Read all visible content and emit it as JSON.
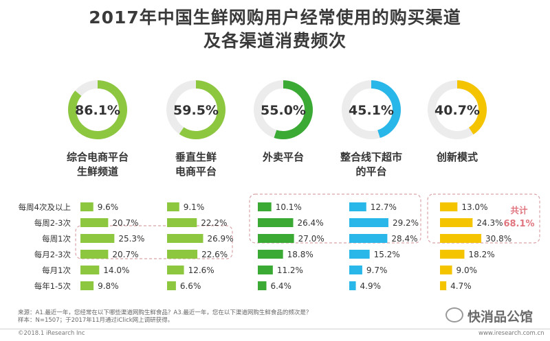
{
  "header": {
    "title_line1": "2017年中国生鲜网购用户经常使用的购买渠道",
    "title_line2": "及各渠道消费频次"
  },
  "chart_data": {
    "type": "bar",
    "title": "2017年中国生鲜网购用户经常使用的购买渠道及各渠道消费频次",
    "channels": [
      {
        "name": "综合电商平台\n生鲜频道",
        "usage": 86.1,
        "usage_label": "86.1%",
        "color": "#8dc63f",
        "freq": [
          9.6,
          20.7,
          25.3,
          20.7,
          14.0,
          9.8
        ]
      },
      {
        "name": "垂直生鲜\n电商平台",
        "usage": 59.5,
        "usage_label": "59.5%",
        "color": "#8dc63f",
        "freq": [
          9.1,
          22.2,
          26.9,
          22.6,
          12.6,
          6.6
        ]
      },
      {
        "name": "外卖平台",
        "usage": 55.0,
        "usage_label": "55.0%",
        "color": "#3aaa35",
        "freq": [
          10.1,
          26.4,
          27.0,
          18.8,
          11.2,
          6.4
        ]
      },
      {
        "name": "整合线下超市\n的平台",
        "usage": 45.1,
        "usage_label": "45.1%",
        "color": "#29b6e8",
        "freq": [
          12.7,
          29.2,
          28.4,
          15.2,
          9.7,
          4.9
        ]
      },
      {
        "name": "创新模式",
        "usage": 40.7,
        "usage_label": "40.7%",
        "color": "#f5c400",
        "freq": [
          13.0,
          24.3,
          30.8,
          18.2,
          9.0,
          4.7
        ]
      }
    ],
    "frequency_labels": [
      "每周4次及以上",
      "每周2-3次",
      "每周1次",
      "每月2-3次",
      "每月1次",
      "每年1-5次"
    ],
    "annotation": {
      "label": "共计",
      "value": "68.1%"
    }
  },
  "notes": {
    "source": "来源：A1.最近一年，您经常在以下哪些渠道网购生鲜食品？A3.最近一年，您在以下渠道网购生鲜食品的频次是？",
    "sample": "样本：N=1507；于2017年11月通过iClick网上调研获得。"
  },
  "footer": {
    "copyright": "©2018.1 iResearch Inc",
    "website": "www.iresearch.com.cn",
    "watermark": "快消品公馆"
  }
}
